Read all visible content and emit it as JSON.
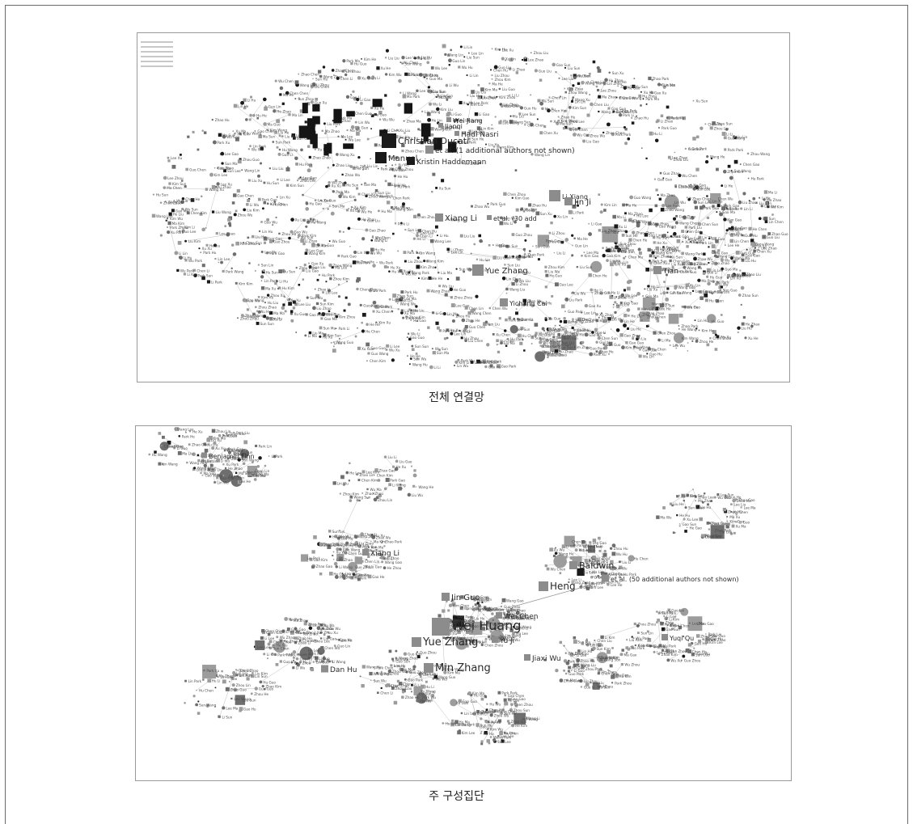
{
  "figure": {
    "panels": [
      {
        "id": "full-network",
        "caption": "전체 연결망",
        "hub_labels": [
          "Christian Ducati",
          "et al. (1 additional authors not shown)",
          "Manuel",
          "Kristin Haddemann",
          "Xiang Li",
          "et al. (30 add",
          "Yue Zhang",
          "Tian",
          "Hadi Nasri",
          "Jianqi",
          "Wei Jiang",
          "Li Xiang",
          "Jin Ji",
          "Yichang Cai"
        ]
      },
      {
        "id": "main-component",
        "caption": "주 구성집단",
        "hub_labels": [
          "Benjamin Finn",
          "Xiang Li",
          "Baldwin",
          "Heng",
          "et al. (50 additional authors not shown)",
          "Wei Huang",
          "Jin Guo",
          "Yue Zhang",
          "Min Zhang",
          "Dan Hu",
          "Yu Ji",
          "Wei Chen",
          "Jiaxi Wu",
          "Yuqi Qu"
        ]
      }
    ]
  }
}
